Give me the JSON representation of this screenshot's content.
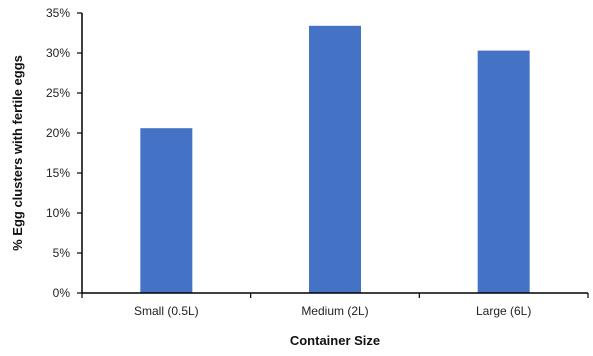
{
  "chart_data": {
    "type": "bar",
    "title": "",
    "xlabel": "Container Size",
    "ylabel": "% Egg clusters with fertile eggs",
    "categories": [
      "Small (0.5L)",
      "Medium (2L)",
      "Large (6L)"
    ],
    "values": [
      20.6,
      33.4,
      30.3
    ],
    "ylim": [
      0,
      35
    ],
    "yticks": [
      0,
      5,
      10,
      15,
      20,
      25,
      30,
      35
    ],
    "ytick_labels": [
      "0%",
      "5%",
      "10%",
      "15%",
      "20%",
      "25%",
      "30%",
      "35%"
    ],
    "grid": false,
    "legend": "none",
    "bar_color": "#4472C4",
    "axis_color": "#000000"
  }
}
